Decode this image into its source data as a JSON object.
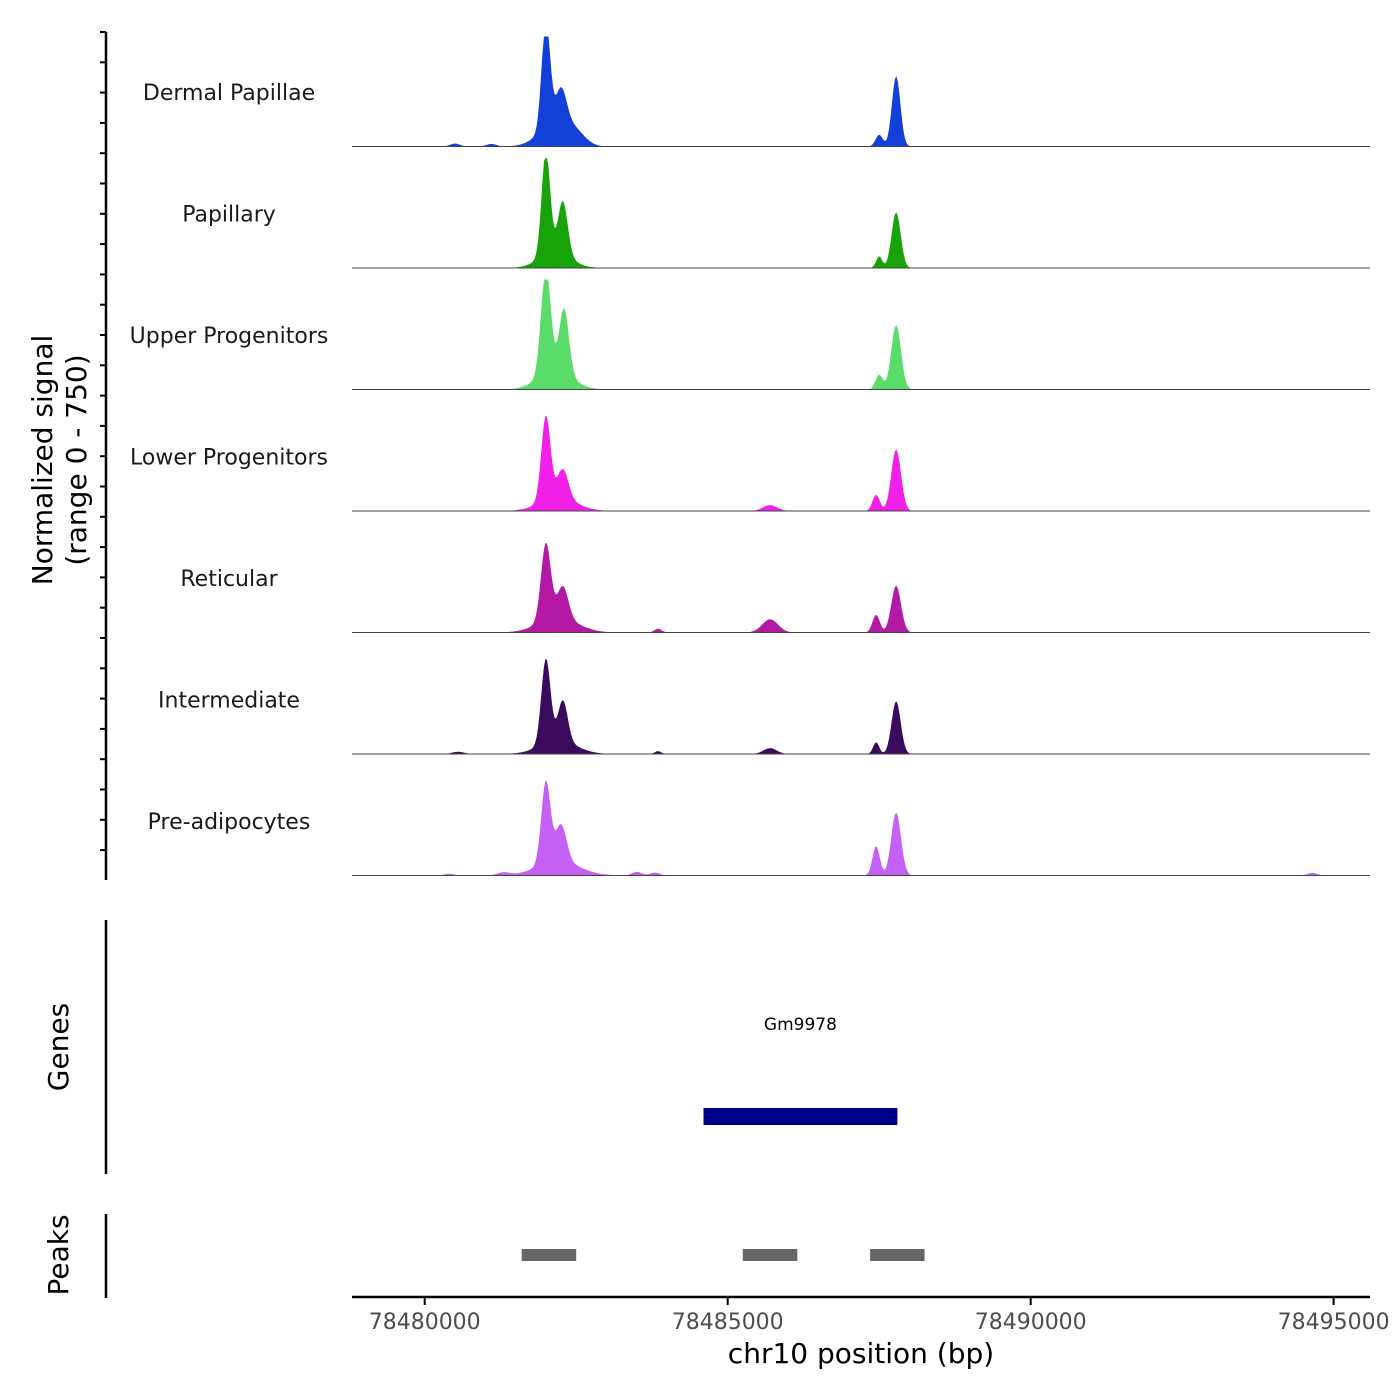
{
  "chart_data": {
    "type": "area",
    "title": "",
    "ylabel_line1": "Normalized signal",
    "ylabel_line2": "(range 0 - 750)",
    "y_range": [
      0,
      750
    ],
    "xlabel": "chr10 position (bp)",
    "xlim": [
      78478800,
      78495600
    ],
    "x_ticks": [
      78480000,
      78485000,
      78490000,
      78495000
    ],
    "x_tick_labels": [
      "78480000",
      "78485000",
      "78490000",
      "78495000"
    ],
    "tracks": [
      {
        "name": "Dermal Papillae",
        "color": "#1240D8",
        "peaks": [
          {
            "center": 78482000,
            "height": 750,
            "width": 70
          },
          {
            "center": 78482250,
            "height": 250,
            "width": 90
          },
          {
            "center": 78482450,
            "height": 100,
            "width": 180
          },
          {
            "center": 78482100,
            "height": 120,
            "width": 250
          },
          {
            "center": 78487780,
            "height": 480,
            "width": 70
          },
          {
            "center": 78487500,
            "height": 80,
            "width": 60
          },
          {
            "center": 78480500,
            "height": 20,
            "width": 80
          },
          {
            "center": 78481100,
            "height": 18,
            "width": 80
          }
        ]
      },
      {
        "name": "Papillary",
        "color": "#18A30A",
        "peaks": [
          {
            "center": 78482000,
            "height": 720,
            "width": 70
          },
          {
            "center": 78482280,
            "height": 370,
            "width": 80
          },
          {
            "center": 78482150,
            "height": 100,
            "width": 260
          },
          {
            "center": 78487780,
            "height": 380,
            "width": 75
          },
          {
            "center": 78487500,
            "height": 80,
            "width": 50
          }
        ]
      },
      {
        "name": "Upper Progenitors",
        "color": "#5ADC6A",
        "peaks": [
          {
            "center": 78482000,
            "height": 720,
            "width": 80
          },
          {
            "center": 78482300,
            "height": 450,
            "width": 80
          },
          {
            "center": 78482150,
            "height": 120,
            "width": 280
          },
          {
            "center": 78487780,
            "height": 440,
            "width": 80
          },
          {
            "center": 78487500,
            "height": 100,
            "width": 60
          }
        ]
      },
      {
        "name": "Lower Progenitors",
        "color": "#F020E8",
        "peaks": [
          {
            "center": 78482000,
            "height": 580,
            "width": 75
          },
          {
            "center": 78482280,
            "height": 200,
            "width": 90
          },
          {
            "center": 78482200,
            "height": 90,
            "width": 300
          },
          {
            "center": 78485700,
            "height": 40,
            "width": 120
          },
          {
            "center": 78487780,
            "height": 420,
            "width": 80
          },
          {
            "center": 78487450,
            "height": 110,
            "width": 60
          }
        ]
      },
      {
        "name": "Reticular",
        "color": "#B419A6",
        "peaks": [
          {
            "center": 78482000,
            "height": 530,
            "width": 80
          },
          {
            "center": 78482280,
            "height": 220,
            "width": 90
          },
          {
            "center": 78482200,
            "height": 100,
            "width": 320
          },
          {
            "center": 78485700,
            "height": 90,
            "width": 130
          },
          {
            "center": 78483850,
            "height": 25,
            "width": 60
          },
          {
            "center": 78487780,
            "height": 320,
            "width": 80
          },
          {
            "center": 78487450,
            "height": 120,
            "width": 60
          }
        ]
      },
      {
        "name": "Intermediate",
        "color": "#3A0A5C",
        "peaks": [
          {
            "center": 78482000,
            "height": 580,
            "width": 75
          },
          {
            "center": 78482280,
            "height": 280,
            "width": 80
          },
          {
            "center": 78482200,
            "height": 90,
            "width": 300
          },
          {
            "center": 78485700,
            "height": 40,
            "width": 110
          },
          {
            "center": 78483850,
            "height": 20,
            "width": 50
          },
          {
            "center": 78487780,
            "height": 360,
            "width": 75
          },
          {
            "center": 78487450,
            "height": 80,
            "width": 50
          },
          {
            "center": 78480550,
            "height": 15,
            "width": 100
          }
        ]
      },
      {
        "name": "Pre-adipocytes",
        "color": "#C460F4",
        "peaks": [
          {
            "center": 78482000,
            "height": 560,
            "width": 75
          },
          {
            "center": 78482250,
            "height": 250,
            "width": 90
          },
          {
            "center": 78482200,
            "height": 100,
            "width": 340
          },
          {
            "center": 78487780,
            "height": 430,
            "width": 80
          },
          {
            "center": 78487450,
            "height": 200,
            "width": 60
          },
          {
            "center": 78483500,
            "height": 25,
            "width": 80
          },
          {
            "center": 78483800,
            "height": 20,
            "width": 80
          },
          {
            "center": 78481300,
            "height": 20,
            "width": 100
          },
          {
            "center": 78494650,
            "height": 18,
            "width": 80
          },
          {
            "center": 78480400,
            "height": 12,
            "width": 80
          }
        ]
      }
    ],
    "genes_label": "Genes",
    "genes": [
      {
        "name": "Gm9978",
        "start": 78484600,
        "end": 78487800,
        "color": "#00008B"
      }
    ],
    "peaks_label": "Peaks",
    "peak_regions": [
      {
        "start": 78481600,
        "end": 78482500
      },
      {
        "start": 78485250,
        "end": 78486150
      },
      {
        "start": 78487350,
        "end": 78488250
      }
    ]
  }
}
